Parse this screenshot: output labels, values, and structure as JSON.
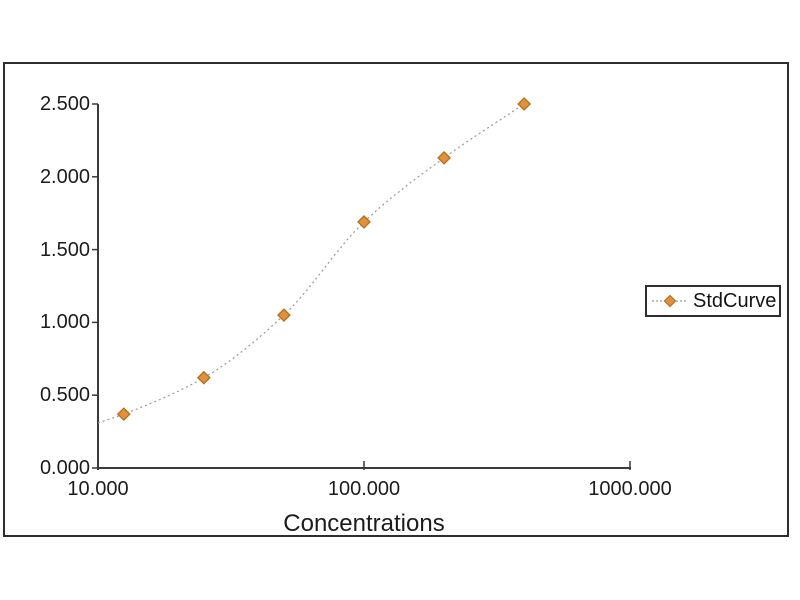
{
  "window": {
    "background": "#FFFFFF"
  },
  "chart_data": {
    "type": "scatter",
    "subtype": "standard-curve-with-fit-line",
    "title": "",
    "xlabel": "Concentrations",
    "ylabel": "",
    "x_scale": "log10",
    "xlim": [
      10,
      1000
    ],
    "ylim": [
      0,
      2.5
    ],
    "grid": false,
    "x_ticks": [
      {
        "value": 10,
        "label": "10.000"
      },
      {
        "value": 100,
        "label": "100.000"
      },
      {
        "value": 1000,
        "label": "1000.000"
      }
    ],
    "y_ticks": [
      {
        "value": 2.5,
        "label": "2.500"
      },
      {
        "value": 2.0,
        "label": "2.000"
      },
      {
        "value": 1.5,
        "label": "1.500"
      },
      {
        "value": 1.0,
        "label": "1.000"
      },
      {
        "value": 0.5,
        "label": "0.500"
      },
      {
        "value": 0.0,
        "label": "0.000"
      }
    ],
    "legend": {
      "position": "middle-right",
      "entries": [
        "StdCurve"
      ]
    },
    "series": [
      {
        "name": "StdCurve",
        "marker": "diamond",
        "line_style": "dotted",
        "x": [
          12.5,
          25,
          50,
          100,
          200,
          400
        ],
        "y": [
          0.37,
          0.62,
          1.05,
          1.69,
          2.13,
          2.5
        ]
      }
    ],
    "fit_curve": {
      "style": "dotted",
      "left_end": {
        "x": 10,
        "y": 0.31
      },
      "right_end": {
        "x": 400,
        "y": 2.5
      }
    },
    "colors": {
      "marker_fill": "#E0913D",
      "marker_stroke": "#B56F1E",
      "curve": "#9A9A9A",
      "axis": "#3A3A3A",
      "text": "#1C1C1C",
      "frame_border": "#2E2E2E",
      "background": "#FFFFFF"
    }
  }
}
